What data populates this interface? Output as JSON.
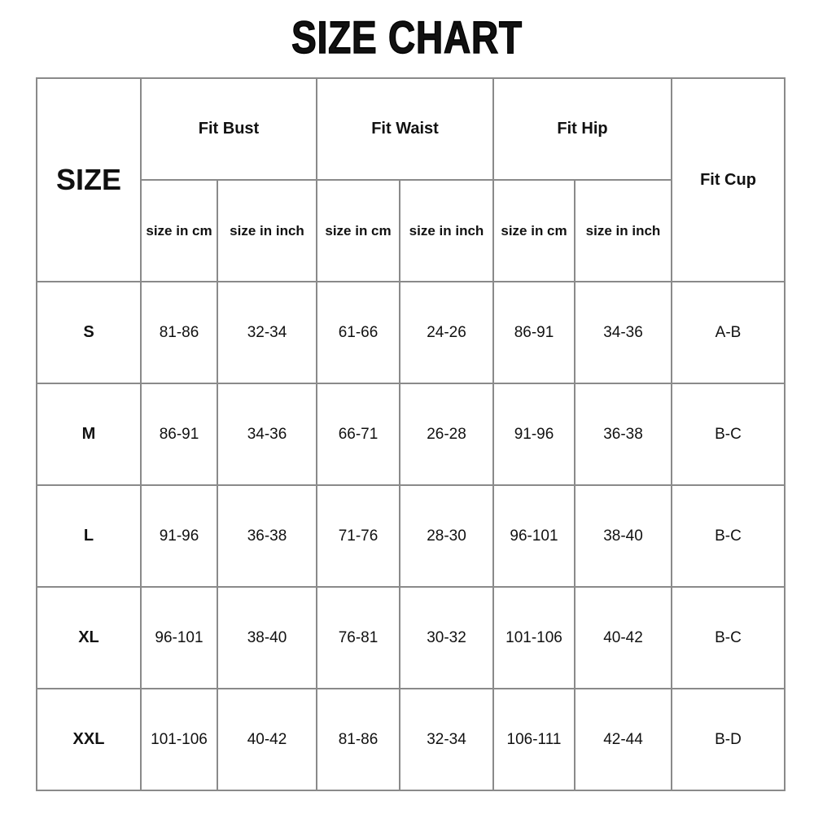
{
  "title": "SIZE CHART",
  "table": {
    "size_header": "SIZE",
    "groups": [
      "Fit Bust",
      "Fit Waist",
      "Fit Hip"
    ],
    "cup_header": "Fit Cup",
    "sub_headers": [
      "size in cm",
      "size in inch",
      "size in cm",
      "size in inch",
      "size in cm",
      "size in inch"
    ],
    "rows": [
      {
        "size": "S",
        "values": [
          "81-86",
          "32-34",
          "61-66",
          "24-26",
          "86-91",
          "34-36"
        ],
        "cup": "A-B"
      },
      {
        "size": "M",
        "values": [
          "86-91",
          "34-36",
          "66-71",
          "26-28",
          "91-96",
          "36-38"
        ],
        "cup": "B-C"
      },
      {
        "size": "L",
        "values": [
          "91-96",
          "36-38",
          "71-76",
          "28-30",
          "96-101",
          "38-40"
        ],
        "cup": "B-C"
      },
      {
        "size": "XL",
        "values": [
          "96-101",
          "38-40",
          "76-81",
          "30-32",
          "101-106",
          "40-42"
        ],
        "cup": "B-C"
      },
      {
        "size": "XXL",
        "values": [
          "101-106",
          "40-42",
          "81-86",
          "32-34",
          "106-111",
          "42-44"
        ],
        "cup": "B-D"
      }
    ]
  }
}
